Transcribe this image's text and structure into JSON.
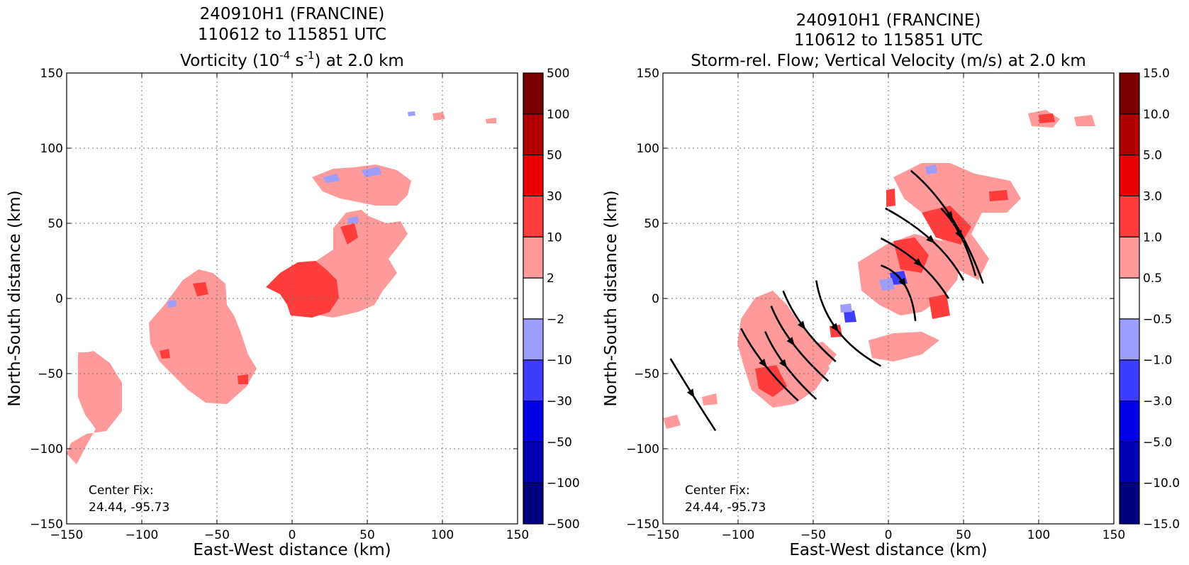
{
  "chart_data": [
    {
      "type": "heatmap",
      "title_lines": [
        "240910H1 (FRANCINE)",
        "110612 to 115851 UTC"
      ],
      "title_var_prefix": "Vorticity (10",
      "title_var_sup1": "-4",
      "title_var_mid": " s",
      "title_var_sup2": "-1",
      "title_var_suffix": ") at 2.0 km",
      "xlabel": "East-West distance (km)",
      "ylabel": "North-South distance (km)",
      "xlim": [
        -150,
        150
      ],
      "ylim": [
        -150,
        150
      ],
      "xticks": [
        "−150",
        "−100",
        "−50",
        "0",
        "50",
        "100",
        "150"
      ],
      "yticks": [
        "−150",
        "−100",
        "−50",
        "0",
        "50",
        "100",
        "150"
      ],
      "grid": true,
      "colorbar": {
        "levels": [
          "500",
          "100",
          "50",
          "30",
          "10",
          "2",
          "−2",
          "−10",
          "−30",
          "−50",
          "−100",
          "−500"
        ],
        "colors": [
          "#7a0000",
          "#b00000",
          "#e80000",
          "#ff3d3d",
          "#ff9a9a",
          "#ffffff",
          "#9d9dff",
          "#3d3dff",
          "#0000e6",
          "#0000b4",
          "#000080"
        ]
      },
      "annotation": {
        "line1": "Center Fix:",
        "line2": "24.44, -95.73"
      },
      "regions": [
        {
          "level": "2 to 10",
          "color": "#ff9a9a",
          "x": 25,
          "y": 50
        },
        {
          "level": "10 to 30",
          "color": "#ff3d3d",
          "x": 10,
          "y": 5
        },
        {
          "level": "2 to 10",
          "color": "#ff9a9a",
          "x": -60,
          "y": -25
        },
        {
          "level": "2 to 10",
          "color": "#ff9a9a",
          "x": -135,
          "y": -65
        },
        {
          "level": "-10 to -2",
          "color": "#9d9dff",
          "x": 40,
          "y": 75
        }
      ]
    },
    {
      "type": "heatmap",
      "title_lines": [
        "240910H1 (FRANCINE)",
        "110612 to 115851 UTC",
        "Storm-rel. Flow; Vertical Velocity (m/s) at 2.0 km"
      ],
      "xlabel": "East-West distance (km)",
      "ylabel": "North-South distance (km)",
      "xlim": [
        -150,
        150
      ],
      "ylim": [
        -150,
        150
      ],
      "xticks": [
        "−150",
        "−100",
        "−50",
        "0",
        "50",
        "100",
        "150"
      ],
      "yticks": [
        "−150",
        "−100",
        "−50",
        "0",
        "50",
        "100",
        "150"
      ],
      "grid": true,
      "colorbar": {
        "levels": [
          "15.0",
          "10.0",
          "5.0",
          "3.0",
          "1.0",
          "0.5",
          "−0.5",
          "−1.0",
          "−3.0",
          "−5.0",
          "−10.0",
          "−15.0"
        ],
        "colors": [
          "#7a0000",
          "#b00000",
          "#e80000",
          "#ff3d3d",
          "#ff9a9a",
          "#ffffff",
          "#9d9dff",
          "#3d3dff",
          "#0000e6",
          "#0000b4",
          "#000080"
        ]
      },
      "annotation": {
        "line1": "Center Fix:",
        "line2": "24.44, -95.73"
      },
      "streamlines": [
        [
          [
            -145,
            -40
          ],
          [
            -130,
            -65
          ],
          [
            -115,
            -88
          ]
        ],
        [
          [
            -98,
            -20
          ],
          [
            -85,
            -45
          ],
          [
            -60,
            -68
          ]
        ],
        [
          [
            -82,
            -22
          ],
          [
            -72,
            -45
          ],
          [
            -48,
            -67
          ]
        ],
        [
          [
            -78,
            -5
          ],
          [
            -68,
            -30
          ],
          [
            -40,
            -55
          ]
        ],
        [
          [
            -70,
            5
          ],
          [
            -60,
            -20
          ],
          [
            -35,
            -42
          ]
        ],
        [
          [
            -48,
            12
          ],
          [
            -42,
            -25
          ],
          [
            -5,
            -45
          ]
        ],
        [
          [
            -5,
            22
          ],
          [
            15,
            15
          ],
          [
            18,
            -15
          ]
        ],
        [
          [
            -5,
            40
          ],
          [
            25,
            25
          ],
          [
            40,
            0
          ]
        ],
        [
          [
            -2,
            60
          ],
          [
            35,
            40
          ],
          [
            50,
            12
          ]
        ],
        [
          [
            15,
            85
          ],
          [
            45,
            60
          ],
          [
            63,
            10
          ]
        ],
        [
          [
            35,
            60
          ],
          [
            50,
            45
          ],
          [
            58,
            15
          ]
        ]
      ],
      "regions": [
        {
          "level": "1.0 to 3.0",
          "color": "#ff3d3d",
          "x": 40,
          "y": 45
        },
        {
          "level": "0.5 to 1.0",
          "color": "#ff9a9a",
          "x": -70,
          "y": -45
        },
        {
          "level": "-1.0 to -0.5",
          "color": "#9d9dff",
          "x": 10,
          "y": 15
        },
        {
          "level": "1.0 to 3.0",
          "color": "#ff3d3d",
          "x": 105,
          "y": 120
        }
      ]
    }
  ]
}
